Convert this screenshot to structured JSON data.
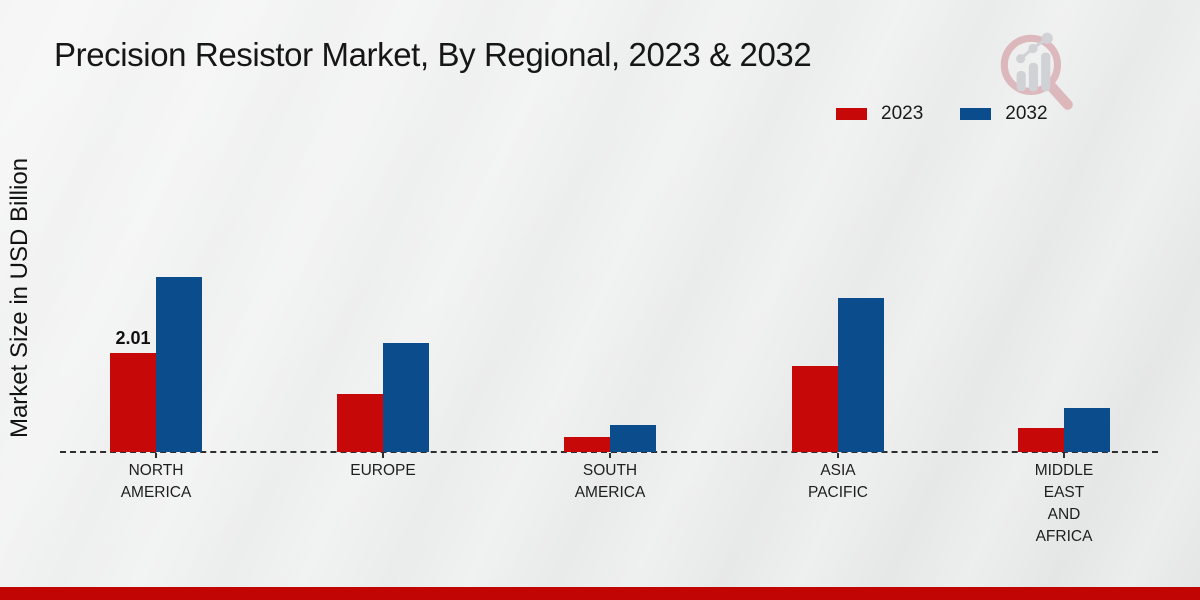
{
  "chart_data": {
    "type": "bar",
    "title": "Precision Resistor Market, By Regional, 2023 & 2032",
    "ylabel": "Market Size in USD Billion",
    "xlabel": "",
    "categories": [
      "NORTH\nAMERICA",
      "EUROPE",
      "SOUTH\nAMERICA",
      "ASIA\nPACIFIC",
      "MIDDLE\nEAST\nAND\nAFRICA"
    ],
    "series": [
      {
        "name": "2023",
        "color": "#c70808",
        "values": [
          2.01,
          1.18,
          0.3,
          1.75,
          0.49
        ]
      },
      {
        "name": "2032",
        "color": "#0b4c8c",
        "values": [
          3.55,
          2.21,
          0.55,
          3.12,
          0.9
        ]
      }
    ],
    "annotations": [
      {
        "series_index": 0,
        "category_index": 0,
        "text": "2.01"
      }
    ],
    "legend_position": "top-right",
    "grid": "off",
    "baseline_style": "dashed",
    "y_axis_ticks": "none",
    "ylim": [
      0,
      4
    ]
  },
  "branding": {
    "logo_icon": "magnifier-growth-chart-logo",
    "bottom_band_color": "#c10505",
    "logo_ring_color": "#cf8d94",
    "logo_bar_color": "#b9bac0"
  },
  "colors": {
    "background_light": "#f5f5f5",
    "background_dark": "#e3e4e4",
    "text": "#161616",
    "baseline": "#2e2e2e"
  }
}
